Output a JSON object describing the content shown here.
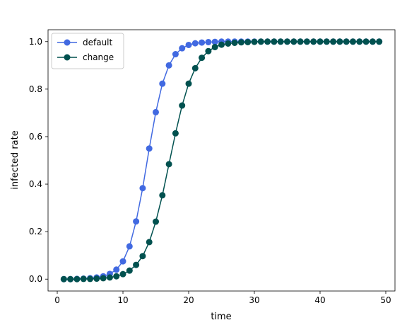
{
  "chart_data": {
    "type": "line",
    "title": "",
    "xlabel": "time",
    "ylabel": "infected rate",
    "xlim": [
      -1.4,
      51.4
    ],
    "ylim": [
      -0.05,
      1.05
    ],
    "xticks": [
      0,
      10,
      20,
      30,
      40,
      50
    ],
    "yticks": [
      0.0,
      0.2,
      0.4,
      0.6,
      0.8,
      1.0
    ],
    "xtick_labels": [
      "0",
      "10",
      "20",
      "30",
      "40",
      "50"
    ],
    "ytick_labels": [
      "0.0",
      "0.2",
      "0.4",
      "0.6",
      "0.8",
      "1.0"
    ],
    "grid": false,
    "legend_position": "top-left",
    "x": [
      1,
      2,
      3,
      4,
      5,
      6,
      7,
      8,
      9,
      10,
      11,
      12,
      13,
      14,
      15,
      16,
      17,
      18,
      19,
      20,
      21,
      22,
      23,
      24,
      25,
      26,
      27,
      28,
      29,
      30,
      31,
      32,
      33,
      34,
      35,
      36,
      37,
      38,
      39,
      40,
      41,
      42,
      43,
      44,
      45,
      46,
      47,
      48,
      49
    ],
    "series": [
      {
        "name": "default",
        "color": "#4169e1",
        "values": [
          0.0,
          0.0,
          0.001,
          0.002,
          0.004,
          0.007,
          0.012,
          0.022,
          0.04,
          0.075,
          0.138,
          0.243,
          0.383,
          0.55,
          0.703,
          0.823,
          0.9,
          0.947,
          0.972,
          0.986,
          0.993,
          0.996,
          0.998,
          0.999,
          1.0,
          1.0,
          1.0,
          1.0,
          1.0,
          1.0,
          1.0,
          1.0,
          1.0,
          1.0,
          1.0,
          1.0,
          1.0,
          1.0,
          1.0,
          1.0,
          1.0,
          1.0,
          1.0,
          1.0,
          1.0,
          1.0,
          1.0,
          1.0,
          1.0
        ]
      },
      {
        "name": "change",
        "color": "#01514f",
        "values": [
          0.0,
          0.0,
          0.0,
          0.001,
          0.001,
          0.002,
          0.004,
          0.007,
          0.012,
          0.021,
          0.036,
          0.06,
          0.097,
          0.156,
          0.242,
          0.353,
          0.484,
          0.614,
          0.731,
          0.823,
          0.888,
          0.932,
          0.96,
          0.977,
          0.987,
          0.992,
          0.995,
          0.997,
          0.998,
          0.999,
          1.0,
          1.0,
          1.0,
          1.0,
          1.0,
          1.0,
          1.0,
          1.0,
          1.0,
          1.0,
          1.0,
          1.0,
          1.0,
          1.0,
          1.0,
          1.0,
          1.0,
          1.0,
          1.0
        ]
      }
    ]
  }
}
